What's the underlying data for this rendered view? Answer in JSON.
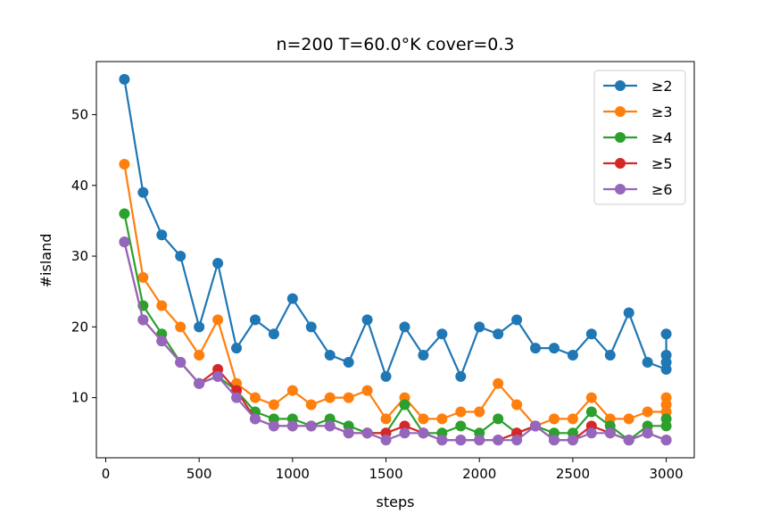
{
  "chart_data": {
    "type": "line",
    "title": "n=200 T=60.0°K cover=0.3",
    "xlabel": "steps",
    "ylabel": "#island",
    "xlim": [
      -50,
      3150
    ],
    "ylim": [
      1.5,
      57.5
    ],
    "xticks": [
      0,
      500,
      1000,
      1500,
      2000,
      2500,
      3000
    ],
    "yticks": [
      10,
      20,
      30,
      40,
      50
    ],
    "grid": false,
    "legend_position": "top-right",
    "x": [
      100,
      200,
      300,
      400,
      500,
      600,
      700,
      800,
      900,
      1000,
      1100,
      1200,
      1300,
      1400,
      1500,
      1600,
      1700,
      1800,
      1900,
      2000,
      2100,
      2200,
      2300,
      2400,
      2500,
      2600,
      2700,
      2800,
      2900,
      3000
    ],
    "series": [
      {
        "name": "≥2",
        "color": "#1f77b4",
        "values": [
          55,
          39,
          33,
          30,
          20,
          29,
          17,
          21,
          19,
          24,
          20,
          16,
          15,
          21,
          13,
          20,
          16,
          19,
          13,
          20,
          19,
          21,
          17,
          17,
          16,
          19,
          16,
          22,
          15,
          14
        ],
        "extra_points": [
          [
            3000,
            19
          ],
          [
            3000,
            16
          ],
          [
            3000,
            15
          ]
        ]
      },
      {
        "name": "≥3",
        "color": "#ff7f0e",
        "values": [
          43,
          27,
          23,
          20,
          16,
          21,
          12,
          10,
          9,
          11,
          9,
          10,
          10,
          11,
          7,
          10,
          7,
          7,
          8,
          8,
          12,
          9,
          6,
          7,
          7,
          10,
          7,
          7,
          8,
          8
        ],
        "extra_points": [
          [
            3000,
            10
          ],
          [
            3000,
            9
          ]
        ]
      },
      {
        "name": "≥4",
        "color": "#2ca02c",
        "values": [
          36,
          23,
          19,
          15,
          12,
          13,
          11,
          8,
          7,
          7,
          6,
          7,
          6,
          5,
          5,
          9,
          5,
          5,
          6,
          5,
          7,
          5,
          6,
          5,
          5,
          8,
          6,
          4,
          6,
          6
        ],
        "extra_points": [
          [
            3000,
            7
          ]
        ]
      },
      {
        "name": "≥5",
        "color": "#d62728",
        "values": [
          32,
          21,
          18,
          15,
          12,
          14,
          11,
          7,
          6,
          6,
          6,
          6,
          5,
          5,
          5,
          6,
          5,
          4,
          4,
          4,
          4,
          5,
          6,
          4,
          4,
          6,
          5,
          4,
          5,
          4
        ],
        "extra_points": []
      },
      {
        "name": "≥6",
        "color": "#9467bd",
        "values": [
          32,
          21,
          18,
          15,
          12,
          13,
          10,
          7,
          6,
          6,
          6,
          6,
          5,
          5,
          4,
          5,
          5,
          4,
          4,
          4,
          4,
          4,
          6,
          4,
          4,
          5,
          5,
          4,
          5,
          4
        ],
        "extra_points": []
      }
    ]
  }
}
